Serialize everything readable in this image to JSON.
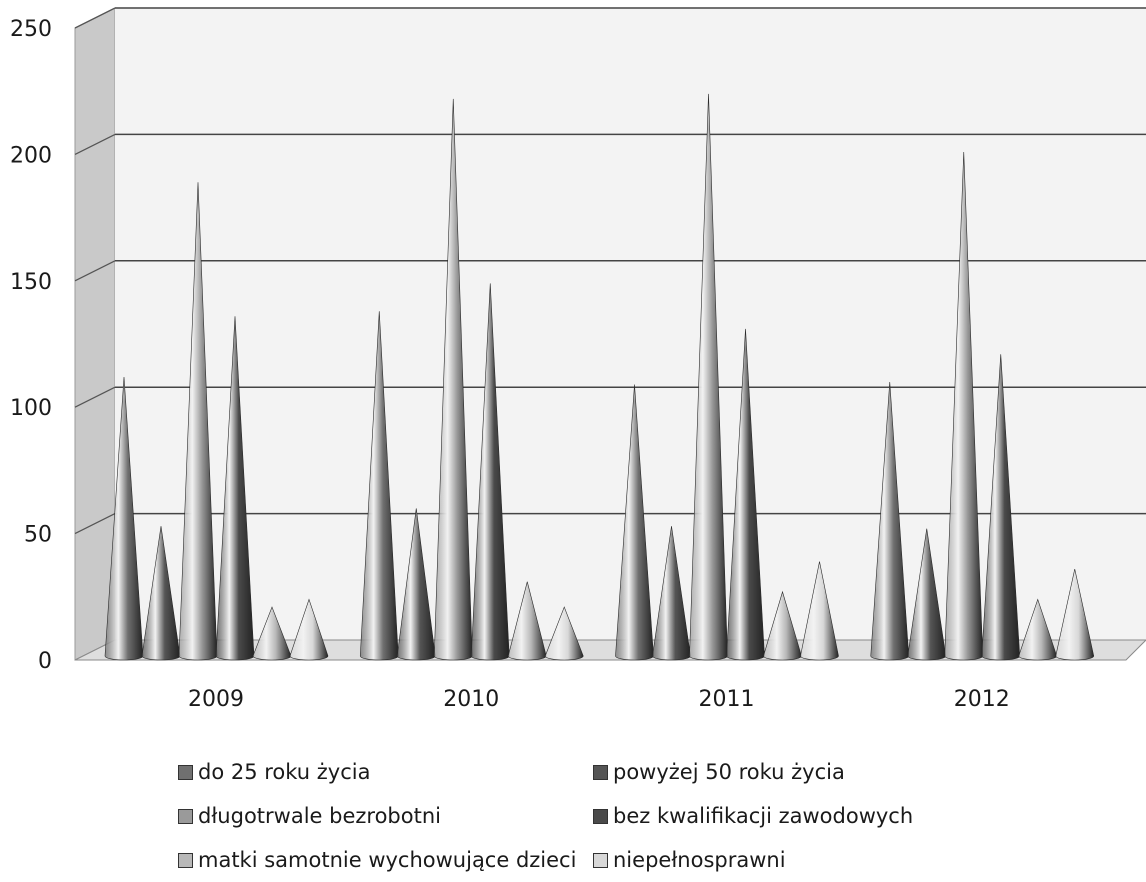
{
  "chart_data": {
    "type": "bar",
    "subtype": "3d-cone",
    "categories": [
      "2009",
      "2010",
      "2011",
      "2012"
    ],
    "ylim": [
      0,
      250
    ],
    "yticks": [
      "0",
      "50",
      "100",
      "150",
      "200",
      "250"
    ],
    "grid": true,
    "legend_position": "bottom",
    "series": [
      {
        "name": "do 25 roku życia",
        "values": [
          108,
          134,
          105,
          106
        ],
        "color": "#707070"
      },
      {
        "name": "powyżej 50 roku życia",
        "values": [
          49,
          56,
          49,
          48
        ],
        "color": "#555555"
      },
      {
        "name": "długotrwale bezrobotni",
        "values": [
          185,
          218,
          220,
          197
        ],
        "color": "#9a9a9a"
      },
      {
        "name": "bez kwalifikacji zawodowych",
        "values": [
          132,
          145,
          127,
          117
        ],
        "color": "#4a4a4a"
      },
      {
        "name": "matki samotnie wychowujące dzieci",
        "values": [
          17,
          27,
          23,
          20
        ],
        "color": "#b8b8b8"
      },
      {
        "name": "niepełnosprawni",
        "values": [
          20,
          17,
          35,
          32
        ],
        "color": "#d8d8d8"
      }
    ]
  }
}
